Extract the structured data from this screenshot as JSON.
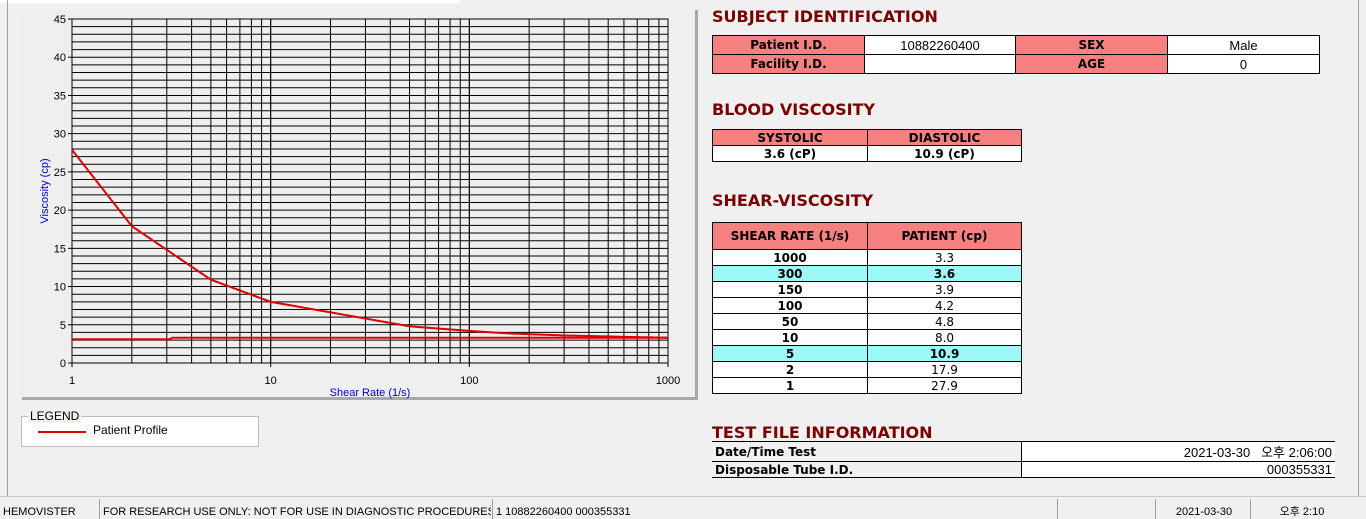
{
  "subject": {
    "title": "SUBJECT IDENTIFICATION",
    "patient_id_label": "Patient I.D.",
    "patient_id": "10882260400",
    "sex_label": "SEX",
    "sex": "Male",
    "facility_label": "Facility I.D.",
    "facility": "",
    "age_label": "AGE",
    "age": "0"
  },
  "blood": {
    "title": "BLOOD VISCOSITY",
    "systolic_label": "SYSTOLIC",
    "diastolic_label": "DIASTOLIC",
    "systolic": "3.6 (cP)",
    "diastolic": "10.9 (cP)"
  },
  "shear": {
    "title": "SHEAR-VISCOSITY",
    "col1": "SHEAR RATE (1/s)",
    "col2": "PATIENT (cp)",
    "rows": [
      {
        "rate": "1000",
        "value": "3.3",
        "hl": false
      },
      {
        "rate": "300",
        "value": "3.6",
        "hl": true
      },
      {
        "rate": "150",
        "value": "3.9",
        "hl": false
      },
      {
        "rate": "100",
        "value": "4.2",
        "hl": false
      },
      {
        "rate": "50",
        "value": "4.8",
        "hl": false
      },
      {
        "rate": "10",
        "value": "8.0",
        "hl": false
      },
      {
        "rate": "5",
        "value": "10.9",
        "hl": true
      },
      {
        "rate": "2",
        "value": "17.9",
        "hl": false
      },
      {
        "rate": "1",
        "value": "27.9",
        "hl": false
      }
    ]
  },
  "testfile": {
    "title": "TEST FILE INFORMATION",
    "date_label": "Date/Time Test",
    "date": "2021-03-30   오후 2:06:00",
    "tube_label": "Disposable Tube I.D.",
    "tube": "000355331"
  },
  "legend": {
    "title": "LEGEND",
    "entry": "Patient Profile"
  },
  "status": {
    "app": "HEMOVISTER",
    "notice": "FOR RESEARCH USE ONLY: NOT FOR USE IN DIAGNOSTIC PROCEDURES",
    "record": "1  10882260400  000355331",
    "empty": "",
    "date": "2021-03-30",
    "time": "오후 2:10"
  },
  "colors": {
    "header_bg": "#f58080",
    "highlight_bg": "#9ff8f8",
    "title": "#7a0000",
    "series": "#dd0000",
    "axis_label": "#0000cc"
  },
  "chart_data": {
    "type": "line",
    "xlabel": "Shear Rate (1/s)",
    "ylabel": "Viscosity (cp)",
    "xscale": "log",
    "xlim": [
      1,
      1000
    ],
    "ylim": [
      0,
      45
    ],
    "grid": true,
    "xticks": [
      "1",
      "10",
      "100",
      "1000"
    ],
    "yticks": [
      "0",
      "5",
      "10",
      "15",
      "20",
      "25",
      "30",
      "35",
      "40",
      "45"
    ],
    "series": [
      {
        "name": "Patient Profile",
        "x": [
          1,
          2,
          5,
          10,
          50,
          100,
          150,
          300,
          1000
        ],
        "y": [
          27.9,
          17.9,
          10.9,
          8.0,
          4.8,
          4.2,
          3.9,
          3.6,
          3.3
        ]
      },
      {
        "x": [
          1,
          3.1,
          3.2,
          1000
        ],
        "y": [
          3.1,
          3.1,
          3.3,
          3.3
        ]
      }
    ]
  }
}
